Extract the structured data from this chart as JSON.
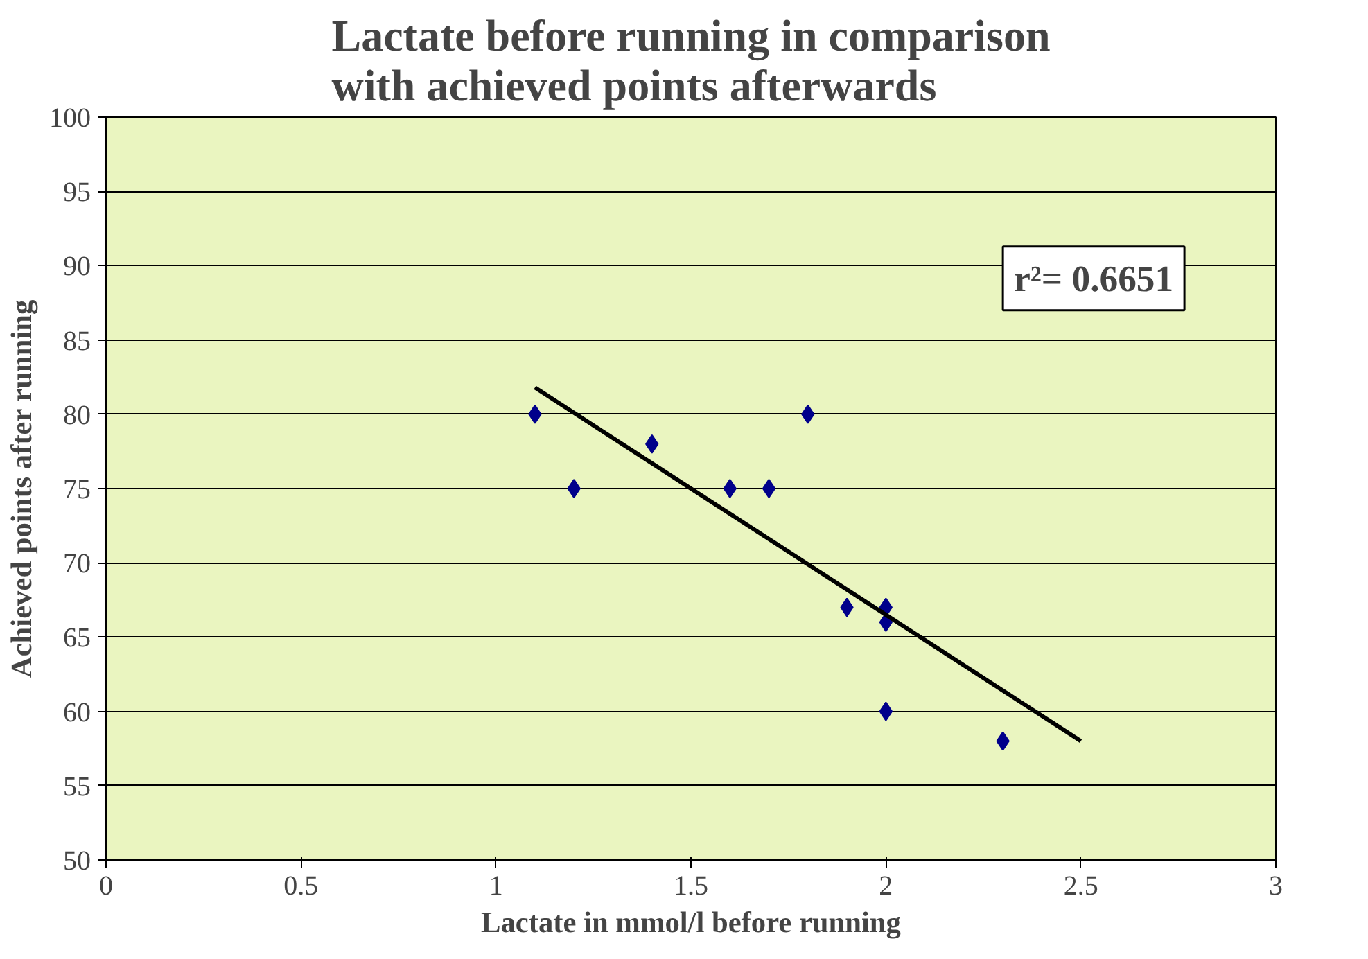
{
  "chart_data": {
    "type": "scatter",
    "title": "Lactate before running in comparison with achieved points afterwards",
    "xlabel": "Lactate in mmol/l before running",
    "ylabel": "Achieved points after running",
    "annotations": [
      "r²= 0.6651"
    ],
    "series": [
      {
        "color": "#00008b",
        "marker": "diamond",
        "x": [
          1.1,
          1.2,
          1.4,
          1.6,
          1.7,
          1.8,
          1.9,
          2.0,
          2.0,
          2.0,
          2.3
        ],
        "values": [
          80,
          75,
          78,
          75,
          75,
          80,
          67,
          67,
          66,
          60,
          58
        ]
      },
      {
        "type": "line",
        "color": "#000000",
        "x": [
          1.1,
          2.5
        ],
        "values": [
          81.8,
          58
        ]
      }
    ],
    "xlim": [
      0,
      3
    ],
    "ylim": [
      50,
      100
    ],
    "xticks": [
      0,
      0.5,
      1,
      1.5,
      2,
      2.5,
      3
    ],
    "yticks": [
      50,
      55,
      60,
      65,
      70,
      75,
      80,
      85,
      90,
      95,
      100
    ],
    "grid": "y"
  }
}
